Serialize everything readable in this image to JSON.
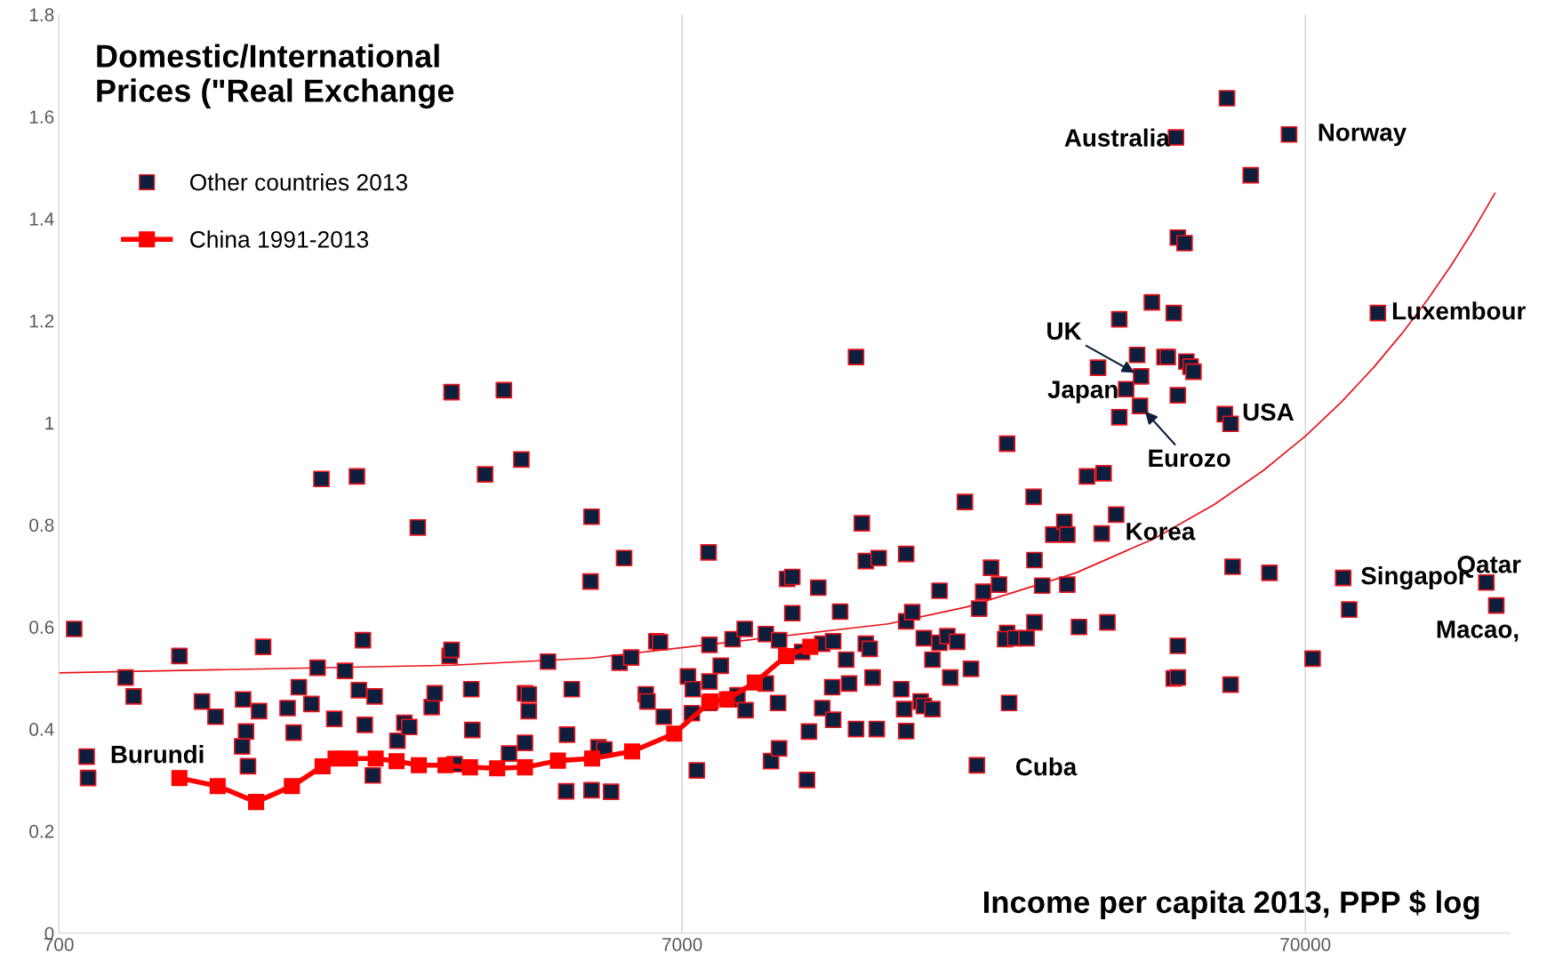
{
  "chart_data": {
    "type": "scatter",
    "title": "Domestic/International\nPrices (\"Real Exchange",
    "xlabel": "Income per capita 2013, PPP $ log",
    "log": "x",
    "grid": "x",
    "legend": "top left",
    "marker": "square",
    "xlim": [
      700,
      149000
    ],
    "xticks": [
      700,
      7000,
      70000
    ],
    "ylim": [
      0,
      1.8
    ],
    "yticks": [
      0,
      0.2,
      0.4,
      0.6,
      0.8,
      1,
      1.2,
      1.4,
      1.6,
      1.8
    ],
    "series": [
      {
        "name": "Other countries 2013",
        "color": "#0d1f3c",
        "x": [
          741,
          776,
          780,
          896,
          923,
          1093,
          1188,
          1249,
          1383,
          1398,
          1378,
          1408,
          1467,
          1489,
          1630,
          1667,
          1699,
          1780,
          1821,
          1847,
          1937,
          2015,
          2106,
          2121,
          2153,
          2168,
          2233,
          2248,
          2446,
          2509,
          2555,
          2637,
          2776,
          2807,
          2966,
          2987,
          2987,
          3021,
          3213,
          3225,
          3381,
          3624,
          3694,
          3866,
          3918,
          3973,
          3973,
          3918,
          4266,
          4577,
          4562,
          4658,
          5010,
          4991,
          5010,
          5140,
          5253,
          5385,
          5557,
          5650,
          5801,
          6122,
          6160,
          6364,
          6452,
          6543,
          7154,
          7283,
          7392,
          7258,
          7719,
          7745,
          7745,
          7745,
          8075,
          8346,
          8436,
          8588,
          8822,
          8850,
          9539,
          9539,
          9724,
          10017,
          10017,
          9980,
          10321,
          10517,
          10517,
          10906,
          11105,
          11186,
          11578,
          11749,
          11749,
          12233,
          12190,
          12233,
          12550,
          12836,
          12973,
          13310,
          13310,
          13600,
          13800,
          13800,
          14000,
          14150,
          14470,
          14370,
          15730,
          16020,
          16020,
          15900,
          16020,
          16380,
          16900,
          17100,
          17100,
          17650,
          17650,
          18120,
          18120,
          18650,
          18850,
          19340,
          19900,
          20350,
          20800,
          20980,
          21290,
          21920,
          22570,
          23260,
          23260,
          23090,
          23430,
          23960,
          24990,
          25650,
          25730,
          25730,
          26480,
          27580,
          28730,
          29050,
          29050,
          30330,
          31240,
          32540,
          32990,
          33220,
          33690,
          34800,
          35200,
          35200,
          36100,
          37600,
          38150,
          38000,
          39700,
          41600,
          42100,
          43050,
          43400,
          43050,
          43700,
          43700,
          43700,
          43700,
          44800,
          45100,
          45800,
          46300,
          51990,
          52400,
          53100,
          53100,
          53500,
          57200,
          61300,
          65900,
          71900,
          80500,
          82300,
          91500,
          136600,
          141700
        ],
        "values": [
          0.596,
          0.346,
          0.304,
          0.501,
          0.464,
          0.543,
          0.454,
          0.424,
          0.458,
          0.395,
          0.366,
          0.327,
          0.435,
          0.561,
          0.441,
          0.393,
          0.482,
          0.449,
          0.52,
          0.89,
          0.42,
          0.514,
          0.895,
          0.476,
          0.574,
          0.408,
          0.309,
          0.464,
          0.377,
          0.412,
          0.404,
          0.795,
          0.443,
          0.47,
          0.543,
          0.555,
          1.06,
          0.331,
          0.478,
          0.398,
          0.899,
          1.064,
          0.352,
          0.928,
          0.47,
          0.468,
          0.435,
          0.373,
          0.532,
          0.389,
          0.278,
          0.478,
          0.816,
          0.689,
          0.28,
          0.364,
          0.36,
          0.277,
          0.53,
          0.735,
          0.54,
          0.468,
          0.454,
          0.572,
          0.57,
          0.424,
          0.503,
          0.478,
          0.319,
          0.431,
          0.746,
          0.565,
          0.493,
          0.451,
          0.524,
          0.458,
          0.576,
          0.466,
          0.596,
          0.437,
          0.586,
          0.489,
          0.337,
          0.574,
          0.362,
          0.451,
          0.694,
          0.698,
          0.627,
          0.551,
          0.3,
          0.395,
          0.677,
          0.441,
          0.567,
          0.572,
          0.482,
          0.418,
          0.63,
          0.536,
          0.489,
          1.129,
          0.4,
          0.803,
          0.729,
          0.567,
          0.557,
          0.501,
          0.735,
          0.4,
          0.478,
          0.743,
          0.611,
          0.439,
          0.396,
          0.629,
          0.454,
          0.578,
          0.445,
          0.536,
          0.439,
          0.671,
          0.569,
          0.582,
          0.501,
          0.571,
          0.845,
          0.518,
          0.329,
          0.636,
          0.669,
          0.716,
          0.683,
          0.959,
          0.588,
          0.576,
          0.451,
          0.578,
          0.578,
          0.855,
          0.731,
          0.609,
          0.681,
          0.781,
          0.806,
          0.781,
          0.683,
          0.6,
          0.895,
          1.108,
          0.783,
          0.901,
          0.609,
          0.82,
          1.203,
          1.011,
          1.066,
          1.133,
          1.091,
          1.033,
          1.236,
          1.129,
          1.129,
          1.215,
          1.559,
          0.499,
          1.363,
          1.054,
          0.563,
          0.501,
          1.352,
          1.12,
          1.11,
          1.1,
          1.017,
          1.636,
          0.998,
          0.487,
          0.718,
          1.485,
          0.706,
          1.565,
          0.538,
          0.696,
          0.634,
          1.215,
          0.687,
          0.642
        ]
      },
      {
        "name": "China 1991-2013",
        "type": "line",
        "color": "#ff0000",
        "x": [
          1093,
          1259,
          1451,
          1656,
          1855,
          1946,
          2053,
          2257,
          2438,
          2647,
          2921,
          3198,
          3535,
          3918,
          4426,
          5020,
          5820,
          6799,
          7776,
          8260,
          9160,
          10280,
          11240
        ],
        "values": [
          0.304,
          0.288,
          0.257,
          0.288,
          0.327,
          0.342,
          0.342,
          0.342,
          0.337,
          0.329,
          0.329,
          0.325,
          0.323,
          0.325,
          0.338,
          0.342,
          0.356,
          0.391,
          0.454,
          0.458,
          0.491,
          0.543,
          0.561
        ]
      },
      {
        "type": "line",
        "marker": "none",
        "color": "#e8141c",
        "x": [
          700,
          3000,
          5000,
          15000,
          20000,
          30000,
          40000,
          50000,
          60000,
          70000,
          80000,
          90000,
          100000,
          110000,
          120000,
          130000,
          141000
        ],
        "values": [
          0.51,
          0.525,
          0.539,
          0.606,
          0.639,
          0.706,
          0.773,
          0.84,
          0.907,
          0.974,
          1.041,
          1.108,
          1.175,
          1.242,
          1.309,
          1.376,
          1.45
        ]
      }
    ],
    "annotations": [
      {
        "text": "Burundi",
        "x": 776,
        "y": 0.346
      },
      {
        "text": "Cuba",
        "x": 20800,
        "y": 0.329
      },
      {
        "text": "Korea",
        "x": 32990,
        "y": 0.783
      },
      {
        "text": "Singapor",
        "x": 80500,
        "y": 0.696
      },
      {
        "text": "Qatar",
        "x": 136600,
        "y": 0.687
      },
      {
        "text": "Macao,",
        "x": 141700,
        "y": 0.642
      },
      {
        "text": "Luxembour",
        "x": 91500,
        "y": 1.215
      },
      {
        "text": "USA",
        "x": 51990,
        "y": 1.017
      },
      {
        "text": "Eurozo",
        "x": 38000,
        "y": 1.033
      },
      {
        "text": "Japan",
        "x": 36100,
        "y": 1.066
      },
      {
        "text": "UK",
        "x": 38150,
        "y": 1.091
      },
      {
        "text": "Australia",
        "x": 43400,
        "y": 1.559
      },
      {
        "text": "Norway",
        "x": 65900,
        "y": 1.565
      }
    ]
  }
}
